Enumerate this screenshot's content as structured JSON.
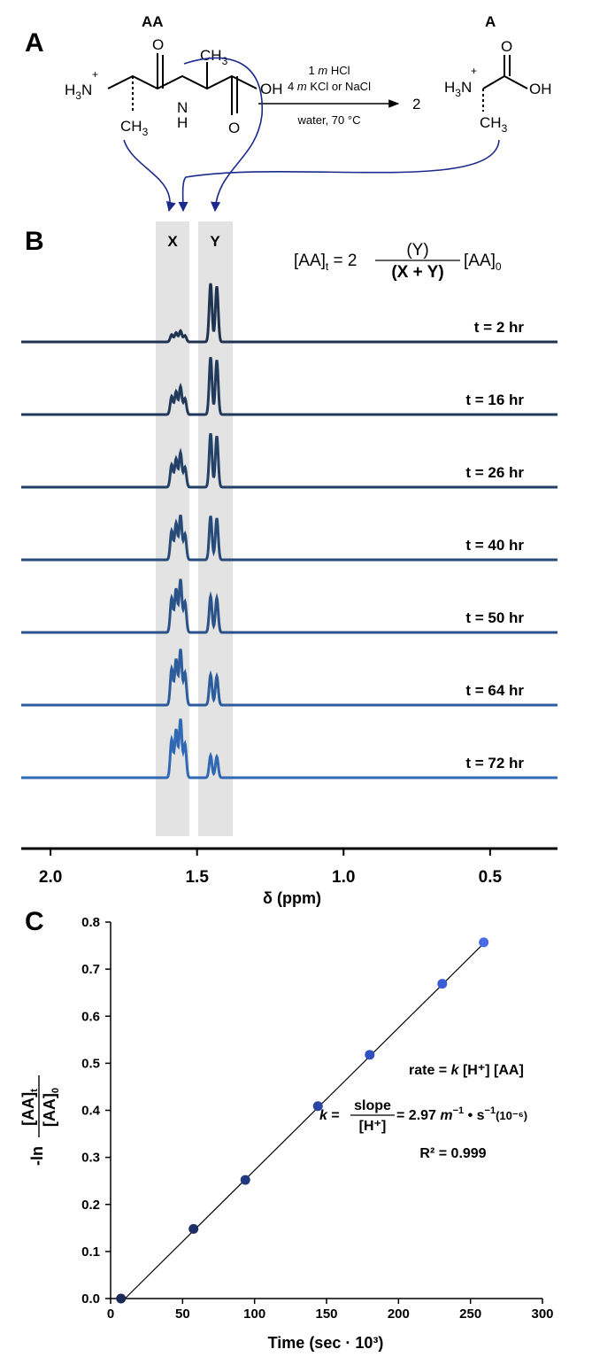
{
  "panel_labels": {
    "a": "A",
    "b": "B",
    "c": "C"
  },
  "scheme": {
    "reactant_label": "AA",
    "product_label": "A",
    "conditions": {
      "line1_pre": "1 ",
      "line1_it": "m",
      "line1_post": " HCl",
      "line2_pre": "4 ",
      "line2_it": "m",
      "line2_post": " KCl or NaCl",
      "line3": "water, 70 °C"
    },
    "coefficient": "2",
    "atoms": {
      "ammonium_h": "H",
      "ammonium_sub": "3",
      "ammonium_n": "N",
      "plus": "+",
      "methyl": "CH",
      "methyl_sub": "3",
      "O": "O",
      "NH": "N",
      "H": "H",
      "OH": "OH",
      "CH3_top": "CH",
      "CH3_top_sub": "3"
    }
  },
  "nmr": {
    "peak_labels": {
      "x": "X",
      "y": "Y"
    },
    "formula": {
      "lhs": "[AA]",
      "lhs_sub": "t",
      "eq": " = 2 ",
      "num": "(Y)",
      "den": "(X + Y)",
      "rhs": "[AA]",
      "rhs_sub": "0"
    },
    "spectra": [
      {
        "label": "t =   2 hr",
        "color": "#1f3350",
        "x_rel": 0.2,
        "y_rel": 1.0
      },
      {
        "label": "t = 16 hr",
        "color": "#213a5c",
        "x_rel": 0.5,
        "y_rel": 0.98
      },
      {
        "label": "t = 26 hr",
        "color": "#234167",
        "x_rel": 0.62,
        "y_rel": 0.92
      },
      {
        "label": "t = 40 hr",
        "color": "#264b78",
        "x_rel": 0.8,
        "y_rel": 0.75
      },
      {
        "label": "t = 50 hr",
        "color": "#2a5288",
        "x_rel": 0.95,
        "y_rel": 0.62
      },
      {
        "label": "t = 64 hr",
        "color": "#2d5c9c",
        "x_rel": 1.0,
        "y_rel": 0.52
      },
      {
        "label": "t = 72 hr",
        "color": "#3068b5",
        "x_rel": 1.05,
        "y_rel": 0.38
      }
    ],
    "x_axis": {
      "ticks": [
        "2.0",
        "1.5",
        "1.0",
        "0.5"
      ],
      "tick_values": [
        2.0,
        1.5,
        1.0,
        0.5
      ],
      "label": "δ (ppm)",
      "range": [
        2.1,
        0.27
      ]
    }
  },
  "chart_data": {
    "type": "scatter",
    "title": "",
    "xlabel": "Time (sec · 10³)",
    "ylabel": "-ln [AA]t / [AA]0",
    "ylabel_parts": {
      "neg": "-ln",
      "num": "[AA]",
      "num_sub": "t",
      "den": "[AA]",
      "den_sub": "0"
    },
    "xlim": [
      0,
      300
    ],
    "ylim": [
      0.0,
      0.8
    ],
    "x_ticks": [
      0,
      50,
      100,
      150,
      200,
      250,
      300
    ],
    "y_ticks": [
      0.0,
      0.1,
      0.2,
      0.3,
      0.4,
      0.5,
      0.6,
      0.7,
      0.8
    ],
    "y_tick_labels": [
      "0.0",
      "0.1",
      "0.2",
      "0.3",
      "0.4",
      "0.5",
      "0.6",
      "0.7",
      "0.8"
    ],
    "series": [
      {
        "x": [
          7.2,
          57.6,
          93.6,
          144,
          180,
          230.4,
          259.2
        ],
        "y": [
          0.0,
          0.148,
          0.252,
          0.409,
          0.518,
          0.669,
          0.757
        ],
        "colors": [
          "#1a2a55",
          "#1d2f66",
          "#213880",
          "#2a46a3",
          "#3050c0",
          "#3a5ad6",
          "#4a6be6"
        ]
      }
    ],
    "fit_line": {
      "x": [
        10,
        260
      ],
      "y": [
        0.0,
        0.757
      ]
    },
    "annotations": {
      "rate_pre": "rate = ",
      "rate_k": "k",
      "rate_post": " [H⁺] [AA]",
      "k_it": "k",
      "k_eq": " = ",
      "k_num": "slope",
      "k_den": "[H⁺]",
      "k_val_pre": " = 2.97 ",
      "k_m": "m",
      "k_exp1": "−1",
      "k_mid": " • s",
      "k_exp2": "−1",
      "k_scale": "(10⁻⁶)",
      "r2": "R² = 0.999"
    }
  }
}
